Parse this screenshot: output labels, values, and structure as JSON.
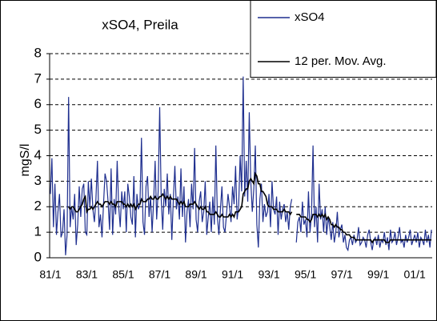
{
  "chart_data": {
    "type": "line",
    "title": "xSO4, Preila",
    "y_label": "mgS/l",
    "categories": [
      "81/1",
      null,
      null,
      null,
      null,
      null,
      null,
      null,
      null,
      null,
      null,
      null,
      null,
      null,
      null,
      null,
      null,
      null,
      null,
      null,
      null,
      null,
      null,
      null,
      "83/1",
      null,
      null,
      null,
      null,
      null,
      null,
      null,
      null,
      null,
      null,
      null,
      null,
      null,
      null,
      null,
      null,
      null,
      null,
      null,
      null,
      null,
      null,
      null,
      "85/1",
      null,
      null,
      null,
      null,
      null,
      null,
      null,
      null,
      null,
      null,
      null,
      null,
      null,
      null,
      null,
      null,
      null,
      null,
      null,
      null,
      null,
      null,
      null,
      "87/1",
      null,
      null,
      null,
      null,
      null,
      null,
      null,
      null,
      null,
      null,
      null,
      null,
      null,
      null,
      null,
      null,
      null,
      null,
      null,
      null,
      null,
      null,
      null,
      "89/1",
      null,
      null,
      null,
      null,
      null,
      null,
      null,
      null,
      null,
      null,
      null,
      null,
      null,
      null,
      null,
      null,
      null,
      null,
      null,
      null,
      null,
      null,
      null,
      "91/1",
      null,
      null,
      null,
      null,
      null,
      null,
      null,
      null,
      null,
      null,
      null,
      null,
      null,
      null,
      null,
      null,
      null,
      null,
      null,
      null,
      null,
      null,
      null,
      "93/1",
      null,
      null,
      null,
      null,
      null,
      null,
      null,
      null,
      null,
      null,
      null,
      null,
      null,
      null,
      null,
      null,
      null,
      null,
      null,
      null,
      null,
      null,
      null,
      "95/1",
      null,
      null,
      null,
      null,
      null,
      null,
      null,
      null,
      null,
      null,
      null,
      null,
      null,
      null,
      null,
      null,
      null,
      null,
      null,
      null,
      null,
      null,
      null,
      "97/1",
      null,
      null,
      null,
      null,
      null,
      null,
      null,
      null,
      null,
      null,
      null,
      null,
      null,
      null,
      null,
      null,
      null,
      null,
      null,
      null,
      null,
      null,
      null,
      "99/1",
      null,
      null,
      null,
      null,
      null,
      null,
      null,
      null,
      null,
      null,
      null,
      null,
      null,
      null,
      null,
      null,
      null,
      null,
      null,
      null,
      null,
      null,
      null,
      "01/1",
      null,
      null,
      null,
      null,
      null,
      null,
      null,
      null,
      null,
      null,
      null
    ],
    "series": [
      {
        "name": "xSO4",
        "color": "#1f2f8f",
        "values": [
          2.5,
          3.9,
          1.2,
          2.9,
          0.9,
          1.8,
          2.5,
          0.8,
          1.0,
          1.9,
          0.1,
          0.9,
          6.3,
          1.2,
          2.0,
          1.5,
          2.5,
          0.5,
          1.3,
          2.8,
          1.6,
          2.7,
          2.9,
          1.0,
          0.9,
          3.0,
          2.0,
          3.1,
          1.9,
          1.4,
          2.3,
          3.8,
          1.2,
          1.7,
          0.8,
          2.1,
          3.3,
          3.0,
          2.2,
          1.1,
          3.5,
          0.9,
          2.3,
          1.7,
          3.8,
          2.0,
          1.2,
          2.6,
          1.9,
          2.6,
          1.0,
          2.9,
          2.4,
          1.6,
          1.3,
          3.2,
          0.8,
          2.5,
          1.9,
          2.1,
          4.7,
          1.4,
          0.9,
          2.8,
          3.2,
          1.6,
          2.4,
          1.0,
          2.2,
          3.8,
          1.5,
          2.6,
          5.9,
          2.3,
          1.1,
          2.7,
          2.0,
          3.3,
          1.7,
          2.5,
          0.7,
          2.3,
          3.6,
          1.9,
          2.4,
          1.5,
          3.5,
          1.6,
          2.8,
          0.6,
          1.8,
          2.3,
          1.2,
          2.9,
          1.9,
          4.3,
          1.5,
          1.0,
          2.2,
          2.6,
          1.4,
          1.8,
          3.0,
          0.9,
          1.6,
          2.2,
          1.0,
          2.4,
          1.3,
          4.4,
          1.6,
          0.9,
          1.9,
          2.8,
          1.2,
          1.0,
          1.7,
          2.5,
          2.0,
          1.4,
          2.8,
          2.1,
          3.6,
          1.5,
          2.0,
          4.0,
          2.6,
          7.1,
          2.4,
          3.8,
          2.2,
          5.7,
          3.0,
          1.8,
          2.7,
          4.4,
          1.3,
          0.4,
          2.3,
          2.9,
          1.4,
          2.1,
          1.6,
          1.8,
          2.5,
          1.2,
          3.0,
          1.9,
          1.7,
          2.4,
          0.9,
          2.2,
          1.5,
          1.9,
          2.1,
          1.4,
          1.8,
          1.1,
          2.0,
          2.3,
          null,
          null,
          0.6,
          1.4,
          1.6,
          1.0,
          2.2,
          1.3,
          1.5,
          0.8,
          2.6,
          1.0,
          1.7,
          4.4,
          1.2,
          2.0,
          0.6,
          2.9,
          1.5,
          1.9,
          1.0,
          2.0,
          0.9,
          1.6,
          1.2,
          0.7,
          1.4,
          0.6,
          1.0,
          1.8,
          0.8,
          1.1,
          1.3,
          0.6,
          0.9,
          0.4,
          0.3,
          0.7,
          0.8,
          0.5,
          0.9,
          0.6,
          0.7,
          1.2,
          0.5,
          0.6,
          0.8,
          0.7,
          0.4,
          0.9,
          1.1,
          0.6,
          0.3,
          0.7,
          0.8,
          0.5,
          0.9,
          0.4,
          0.7,
          0.6,
          1.0,
          0.5,
          0.8,
          0.3,
          1.1,
          0.6,
          0.7,
          1.0,
          0.5,
          0.8,
          1.2,
          0.6,
          0.7,
          0.4,
          0.9,
          0.6,
          0.8,
          1.1,
          0.5,
          0.7,
          0.9,
          0.6,
          1.0,
          0.4,
          0.8,
          0.7,
          0.5,
          1.1,
          0.6,
          0.9,
          0.4,
          1.1
        ]
      },
      {
        "name": "12 per. Mov. Avg.",
        "color": "#000000",
        "values": [
          null,
          null,
          null,
          null,
          null,
          null,
          null,
          null,
          null,
          null,
          null,
          null,
          2.0,
          1.9,
          2.0,
          2.0,
          1.9,
          1.8,
          1.8,
          1.9,
          2.0,
          2.1,
          2.3,
          2.4,
          1.8,
          1.9,
          1.9,
          2.0,
          1.9,
          2.0,
          2.1,
          2.2,
          2.1,
          2.1,
          2.0,
          2.1,
          2.2,
          2.2,
          2.2,
          2.1,
          2.2,
          2.1,
          2.1,
          2.0,
          2.2,
          2.2,
          2.2,
          2.2,
          2.1,
          2.1,
          2.0,
          2.1,
          2.0,
          2.1,
          2.0,
          2.1,
          1.9,
          2.0,
          2.1,
          2.1,
          2.3,
          2.2,
          2.2,
          2.2,
          2.3,
          2.3,
          2.4,
          2.3,
          2.3,
          2.4,
          2.3,
          2.3,
          2.4,
          2.4,
          2.5,
          2.4,
          2.3,
          2.4,
          2.3,
          2.4,
          2.3,
          2.3,
          2.3,
          2.3,
          2.2,
          2.1,
          2.2,
          2.1,
          2.2,
          2.0,
          2.0,
          2.0,
          2.1,
          2.1,
          2.1,
          2.2,
          2.1,
          2.0,
          1.9,
          2.0,
          1.9,
          1.9,
          2.0,
          1.8,
          1.8,
          1.7,
          1.7,
          1.7,
          1.7,
          1.8,
          1.7,
          1.6,
          1.6,
          1.7,
          1.6,
          1.6,
          1.6,
          1.6,
          1.7,
          1.6,
          1.7,
          1.6,
          1.8,
          1.8,
          1.8,
          1.9,
          2.0,
          2.5,
          2.6,
          2.7,
          2.7,
          3.0,
          3.1,
          3.0,
          2.9,
          3.3,
          3.2,
          2.9,
          2.9,
          2.6,
          2.6,
          2.5,
          2.4,
          2.1,
          2.0,
          2.0,
          2.0,
          1.9,
          1.9,
          1.9,
          1.8,
          1.8,
          1.8,
          1.8,
          1.9,
          1.8,
          1.8,
          1.8,
          1.7,
          1.8,
          null,
          null,
          1.7,
          1.7,
          1.7,
          1.6,
          1.6,
          1.6,
          1.6,
          1.5,
          1.5,
          1.4,
          1.5,
          1.7,
          1.7,
          1.7,
          1.6,
          1.7,
          1.6,
          1.7,
          1.6,
          1.7,
          1.5,
          1.6,
          1.5,
          1.3,
          1.3,
          1.2,
          1.3,
          1.2,
          1.2,
          1.1,
          1.1,
          1.0,
          1.0,
          0.9,
          0.9,
          0.9,
          0.8,
          0.8,
          0.8,
          0.7,
          0.7,
          0.7,
          0.7,
          0.7,
          0.7,
          0.7,
          0.7,
          0.7,
          0.7,
          0.7,
          0.6,
          0.7,
          0.7,
          0.7,
          0.7,
          0.7,
          0.7,
          0.7,
          0.7,
          0.6,
          0.6,
          0.6,
          0.7,
          0.7,
          0.7,
          0.7,
          0.7,
          0.7,
          0.7,
          0.7,
          0.7,
          0.7,
          0.7,
          0.7,
          0.7,
          0.7,
          0.7,
          0.7,
          0.7,
          0.7,
          0.7,
          0.7,
          0.7,
          0.7,
          0.7,
          0.7,
          0.7,
          0.7,
          0.7,
          0.7
        ]
      }
    ],
    "ylim": [
      0,
      8
    ],
    "yticks": [
      0,
      1,
      2,
      3,
      4,
      5,
      6,
      7,
      8
    ],
    "grid": true,
    "legend": "top-right"
  }
}
